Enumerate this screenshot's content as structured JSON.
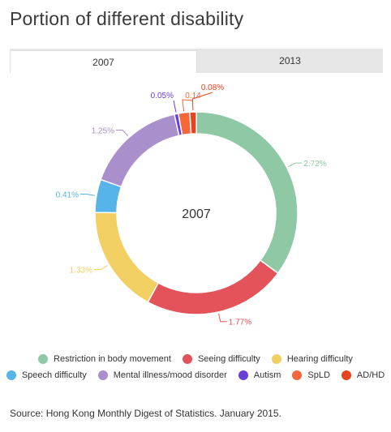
{
  "title": "Portion of different disability",
  "tabs": [
    {
      "label": "2007",
      "active": true
    },
    {
      "label": "2013",
      "active": false
    }
  ],
  "source": "Source: Hong Kong Monthly Digest of Statistics. January 2015.",
  "chart_data": {
    "type": "pie",
    "donut": true,
    "center_label": "2007",
    "categories": [
      "Restriction in body movement",
      "Seeing difficulty",
      "Hearing difficulty",
      "Speech difficulty",
      "Mental illness/mood disorder",
      "Autism",
      "SpLD",
      "AD/HD"
    ],
    "values": [
      2.72,
      1.77,
      1.33,
      0.41,
      1.25,
      0.05,
      0.14,
      0.08
    ],
    "labels": [
      "2.72%",
      "1.77%",
      "1.33%",
      "0.41%",
      "1.25%",
      "0.05%",
      "0.14",
      "0.08%"
    ],
    "colors": [
      "#8ec8a4",
      "#e4535a",
      "#f2cf63",
      "#56b4e8",
      "#a98fcc",
      "#6a3fd6",
      "#f5673a",
      "#e8431c"
    ],
    "legend_position": "bottom"
  }
}
